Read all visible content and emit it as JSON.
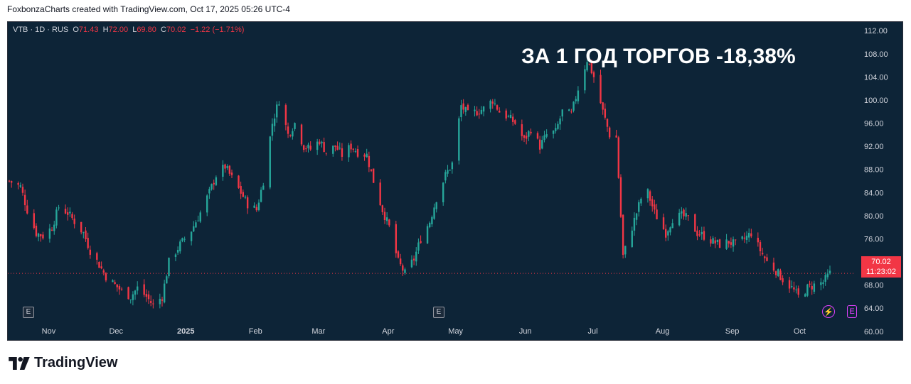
{
  "header": {
    "credit": "FoxbonzaCharts created with TradingView.com, Oct 17, 2025 05:26 UTC-4"
  },
  "legend": {
    "symbol": "VTB · 1D · RUS",
    "o_label": "O",
    "o_value": "71.43",
    "h_label": "H",
    "h_value": "72.00",
    "l_label": "L",
    "l_value": "69.80",
    "c_label": "C",
    "c_value": "70.02",
    "change": "−1.22 (−1.71%)"
  },
  "annotation": "ЗА 1 ГОД ТОРГОВ -18,38%",
  "price_badge": {
    "price": "70.02",
    "countdown": "11:23:02"
  },
  "event_labels": {
    "earnings": "E",
    "dividend": "⚡",
    "split": "E"
  },
  "footer": {
    "brand": "TradingView"
  },
  "colors": {
    "background": "#0d2437",
    "up": "#26a69a",
    "down": "#f23645",
    "axis_text": "#d1d4dc",
    "event": "#e040fb"
  },
  "icons": [
    "earnings-event-icon",
    "dividend-event-icon",
    "tradingview-logo-icon"
  ],
  "chart_data": {
    "type": "candlestick",
    "symbol": "VTB",
    "interval": "1D",
    "y_ticks": [
      60,
      64,
      68,
      72,
      76,
      80,
      84,
      88,
      92,
      96,
      100,
      104,
      108,
      112
    ],
    "y_tick_labels": [
      "60.00",
      "64.00",
      "68.00",
      "72.00",
      "76.00",
      "80.00",
      "84.00",
      "88.00",
      "92.00",
      "96.00",
      "100.00",
      "104.00",
      "108.00",
      "112.00"
    ],
    "ylim": [
      58.5,
      113.5
    ],
    "x_labels": [
      "Nov",
      "Dec",
      "2025",
      "Feb",
      "Mar",
      "Apr",
      "May",
      "Jun",
      "Jul",
      "Aug",
      "Sep",
      "Oct"
    ],
    "last_price": 70.02,
    "grid": false,
    "close_series": [
      {
        "x": "2024-10-17",
        "y": 86.0
      },
      {
        "x": "2024-10-22",
        "y": 85.0
      },
      {
        "x": "2024-10-25",
        "y": 81.0
      },
      {
        "x": "2024-10-29",
        "y": 77.0
      },
      {
        "x": "2024-11-01",
        "y": 76.5
      },
      {
        "x": "2024-11-05",
        "y": 78.0
      },
      {
        "x": "2024-11-08",
        "y": 81.5
      },
      {
        "x": "2024-11-12",
        "y": 80.5
      },
      {
        "x": "2024-11-15",
        "y": 79.0
      },
      {
        "x": "2024-11-19",
        "y": 77.0
      },
      {
        "x": "2024-11-22",
        "y": 74.0
      },
      {
        "x": "2024-11-26",
        "y": 71.5
      },
      {
        "x": "2024-11-29",
        "y": 69.5
      },
      {
        "x": "2024-12-03",
        "y": 68.0
      },
      {
        "x": "2024-12-06",
        "y": 67.0
      },
      {
        "x": "2024-12-10",
        "y": 66.0
      },
      {
        "x": "2024-12-13",
        "y": 67.5
      },
      {
        "x": "2024-12-17",
        "y": 66.0
      },
      {
        "x": "2024-12-20",
        "y": 64.5
      },
      {
        "x": "2024-12-24",
        "y": 66.0
      },
      {
        "x": "2024-12-27",
        "y": 72.0
      },
      {
        "x": "2025-01-01",
        "y": 75.0
      },
      {
        "x": "2025-01-06",
        "y": 77.5
      },
      {
        "x": "2025-01-10",
        "y": 80.5
      },
      {
        "x": "2025-01-14",
        "y": 84.0
      },
      {
        "x": "2025-01-17",
        "y": 87.0
      },
      {
        "x": "2025-01-21",
        "y": 88.5
      },
      {
        "x": "2025-01-24",
        "y": 86.5
      },
      {
        "x": "2025-01-28",
        "y": 84.0
      },
      {
        "x": "2025-01-31",
        "y": 82.0
      },
      {
        "x": "2025-02-04",
        "y": 81.0
      },
      {
        "x": "2025-02-07",
        "y": 86.0
      },
      {
        "x": "2025-02-11",
        "y": 96.0
      },
      {
        "x": "2025-02-14",
        "y": 100.0
      },
      {
        "x": "2025-02-18",
        "y": 94.0
      },
      {
        "x": "2025-02-21",
        "y": 96.0
      },
      {
        "x": "2025-02-25",
        "y": 92.0
      },
      {
        "x": "2025-02-28",
        "y": 91.5
      },
      {
        "x": "2025-03-04",
        "y": 93.0
      },
      {
        "x": "2025-03-07",
        "y": 91.0
      },
      {
        "x": "2025-03-11",
        "y": 92.0
      },
      {
        "x": "2025-03-14",
        "y": 90.5
      },
      {
        "x": "2025-03-18",
        "y": 92.0
      },
      {
        "x": "2025-03-21",
        "y": 91.0
      },
      {
        "x": "2025-03-25",
        "y": 90.5
      },
      {
        "x": "2025-03-28",
        "y": 86.0
      },
      {
        "x": "2025-04-01",
        "y": 81.0
      },
      {
        "x": "2025-04-04",
        "y": 78.0
      },
      {
        "x": "2025-04-08",
        "y": 72.0
      },
      {
        "x": "2025-04-11",
        "y": 70.0
      },
      {
        "x": "2025-04-15",
        "y": 72.5
      },
      {
        "x": "2025-04-18",
        "y": 76.0
      },
      {
        "x": "2025-04-22",
        "y": 79.0
      },
      {
        "x": "2025-04-25",
        "y": 83.0
      },
      {
        "x": "2025-04-29",
        "y": 87.0
      },
      {
        "x": "2025-05-02",
        "y": 89.0
      },
      {
        "x": "2025-05-06",
        "y": 99.0
      },
      {
        "x": "2025-05-09",
        "y": 97.5
      },
      {
        "x": "2025-05-13",
        "y": 98.0
      },
      {
        "x": "2025-05-16",
        "y": 98.5
      },
      {
        "x": "2025-05-20",
        "y": 100.0
      },
      {
        "x": "2025-05-23",
        "y": 98.0
      },
      {
        "x": "2025-05-27",
        "y": 97.0
      },
      {
        "x": "2025-05-30",
        "y": 96.0
      },
      {
        "x": "2025-06-03",
        "y": 93.0
      },
      {
        "x": "2025-06-06",
        "y": 95.0
      },
      {
        "x": "2025-06-10",
        "y": 92.0
      },
      {
        "x": "2025-06-13",
        "y": 94.0
      },
      {
        "x": "2025-06-17",
        "y": 94.5
      },
      {
        "x": "2025-06-20",
        "y": 98.0
      },
      {
        "x": "2025-06-24",
        "y": 97.5
      },
      {
        "x": "2025-06-27",
        "y": 102.0
      },
      {
        "x": "2025-07-01",
        "y": 107.0
      },
      {
        "x": "2025-07-04",
        "y": 104.0
      },
      {
        "x": "2025-07-08",
        "y": 98.0
      },
      {
        "x": "2025-07-11",
        "y": 94.0
      },
      {
        "x": "2025-07-14",
        "y": 93.5
      },
      {
        "x": "2025-07-17",
        "y": 73.0
      },
      {
        "x": "2025-07-21",
        "y": 78.0
      },
      {
        "x": "2025-07-25",
        "y": 83.0
      },
      {
        "x": "2025-07-28",
        "y": 84.0
      },
      {
        "x": "2025-07-31",
        "y": 80.5
      },
      {
        "x": "2025-08-05",
        "y": 77.0
      },
      {
        "x": "2025-08-08",
        "y": 79.5
      },
      {
        "x": "2025-08-12",
        "y": 80.0
      },
      {
        "x": "2025-08-15",
        "y": 79.5
      },
      {
        "x": "2025-08-19",
        "y": 77.0
      },
      {
        "x": "2025-08-22",
        "y": 76.5
      },
      {
        "x": "2025-08-26",
        "y": 75.5
      },
      {
        "x": "2025-08-29",
        "y": 75.0
      },
      {
        "x": "2025-09-02",
        "y": 75.5
      },
      {
        "x": "2025-09-05",
        "y": 75.0
      },
      {
        "x": "2025-09-09",
        "y": 76.0
      },
      {
        "x": "2025-09-12",
        "y": 77.0
      },
      {
        "x": "2025-09-16",
        "y": 74.0
      },
      {
        "x": "2025-09-19",
        "y": 72.0
      },
      {
        "x": "2025-09-23",
        "y": 70.5
      },
      {
        "x": "2025-09-26",
        "y": 69.0
      },
      {
        "x": "2025-09-30",
        "y": 67.5
      },
      {
        "x": "2025-10-03",
        "y": 66.0
      },
      {
        "x": "2025-10-07",
        "y": 67.5
      },
      {
        "x": "2025-10-10",
        "y": 68.0
      },
      {
        "x": "2025-10-14",
        "y": 68.5
      },
      {
        "x": "2025-10-17",
        "y": 70.0
      }
    ]
  }
}
